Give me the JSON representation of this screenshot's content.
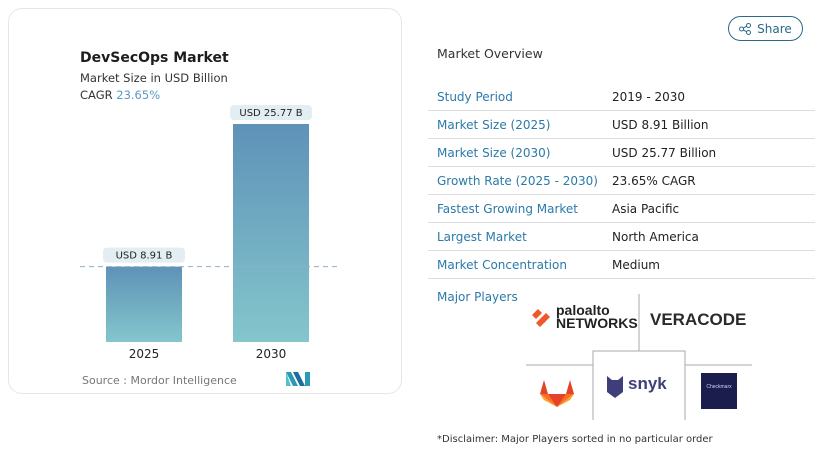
{
  "share": {
    "label": "Share",
    "icon": "share-icon"
  },
  "chart_data": {
    "type": "bar",
    "title": "DevSecOps Market",
    "subtitle": "Market Size in USD Billion",
    "cagr_label": "CAGR",
    "cagr_value": "23.65%",
    "categories": [
      "2025",
      "2030"
    ],
    "values": [
      8.91,
      25.77
    ],
    "data_labels": [
      "USD 8.91 B",
      "USD 25.77 B"
    ],
    "colors": {
      "top": "#5e92b8",
      "bottom": "#84c6cc"
    },
    "reference_line": 8.91,
    "source": "Source :  Mordor Intelligence"
  },
  "overview": {
    "title": "Market Overview",
    "rows": [
      {
        "k": "Study Period",
        "v": "2019 - 2030"
      },
      {
        "k": "Market Size (2025)",
        "v": "USD 8.91 Billion"
      },
      {
        "k": "Market Size (2030)",
        "v": "USD 25.77 Billion"
      },
      {
        "k": "Growth Rate (2025 - 2030)",
        "v": "23.65% CAGR"
      },
      {
        "k": "Fastest Growing Market",
        "v": "Asia Pacific"
      },
      {
        "k": "Largest Market",
        "v": "North America"
      },
      {
        "k": "Market Concentration",
        "v": "Medium"
      }
    ],
    "major_players_label": "Major Players",
    "players": [
      "paloalto NETWORKS",
      "VERACODE",
      "GitLab",
      "snyk",
      "Checkmarx"
    ],
    "disclaimer": "*Disclaimer: Major Players sorted in no particular order"
  }
}
